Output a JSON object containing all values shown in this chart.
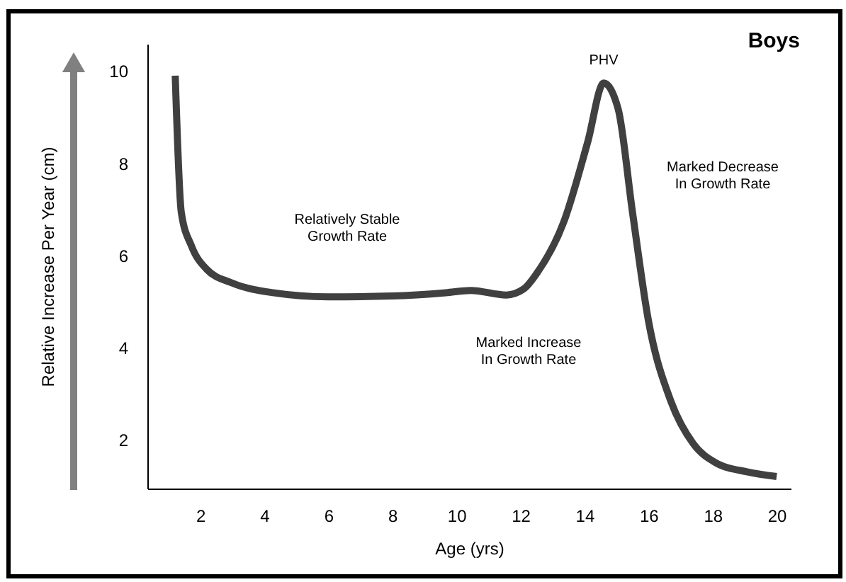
{
  "chart_data": {
    "type": "line",
    "title": "Boys",
    "xlabel": "Age (yrs)",
    "ylabel": "Relative Increase Per Year (cm)",
    "x": [
      1.22,
      1.41,
      1.73,
      2.2,
      3.0,
      4.27,
      6.0,
      8.0,
      9.67,
      10.45,
      11.56,
      12.1,
      12.5,
      13.35,
      14.1,
      14.6,
      15.05,
      15.5,
      16.0,
      16.7,
      17.4,
      18.1,
      19.1,
      20.0
    ],
    "series": [
      {
        "color": "#404040",
        "values": [
          9.9,
          6.93,
          6.2,
          5.7,
          5.4,
          5.19,
          5.1,
          5.12,
          5.19,
          5.24,
          5.14,
          5.27,
          5.6,
          6.72,
          8.46,
          9.74,
          9.18,
          6.93,
          4.57,
          2.83,
          1.91,
          1.5,
          1.3,
          1.2
        ]
      }
    ],
    "xlim": [
      0.35,
      20.44
    ],
    "ylim": [
      0.94,
      10.59
    ],
    "xticks": [
      2,
      4,
      6,
      8,
      10,
      12,
      14,
      16,
      18,
      20
    ],
    "yticks": [
      2,
      4,
      6,
      8,
      10
    ],
    "annotations": [
      {
        "text": "PHV",
        "x": 14.6,
        "y": 9.74
      },
      "Relatively Stable\nGrowth Rate",
      "Marked Increase\nIn Growth Rate",
      "Marked Decrease\nIn Growth Rate"
    ]
  }
}
